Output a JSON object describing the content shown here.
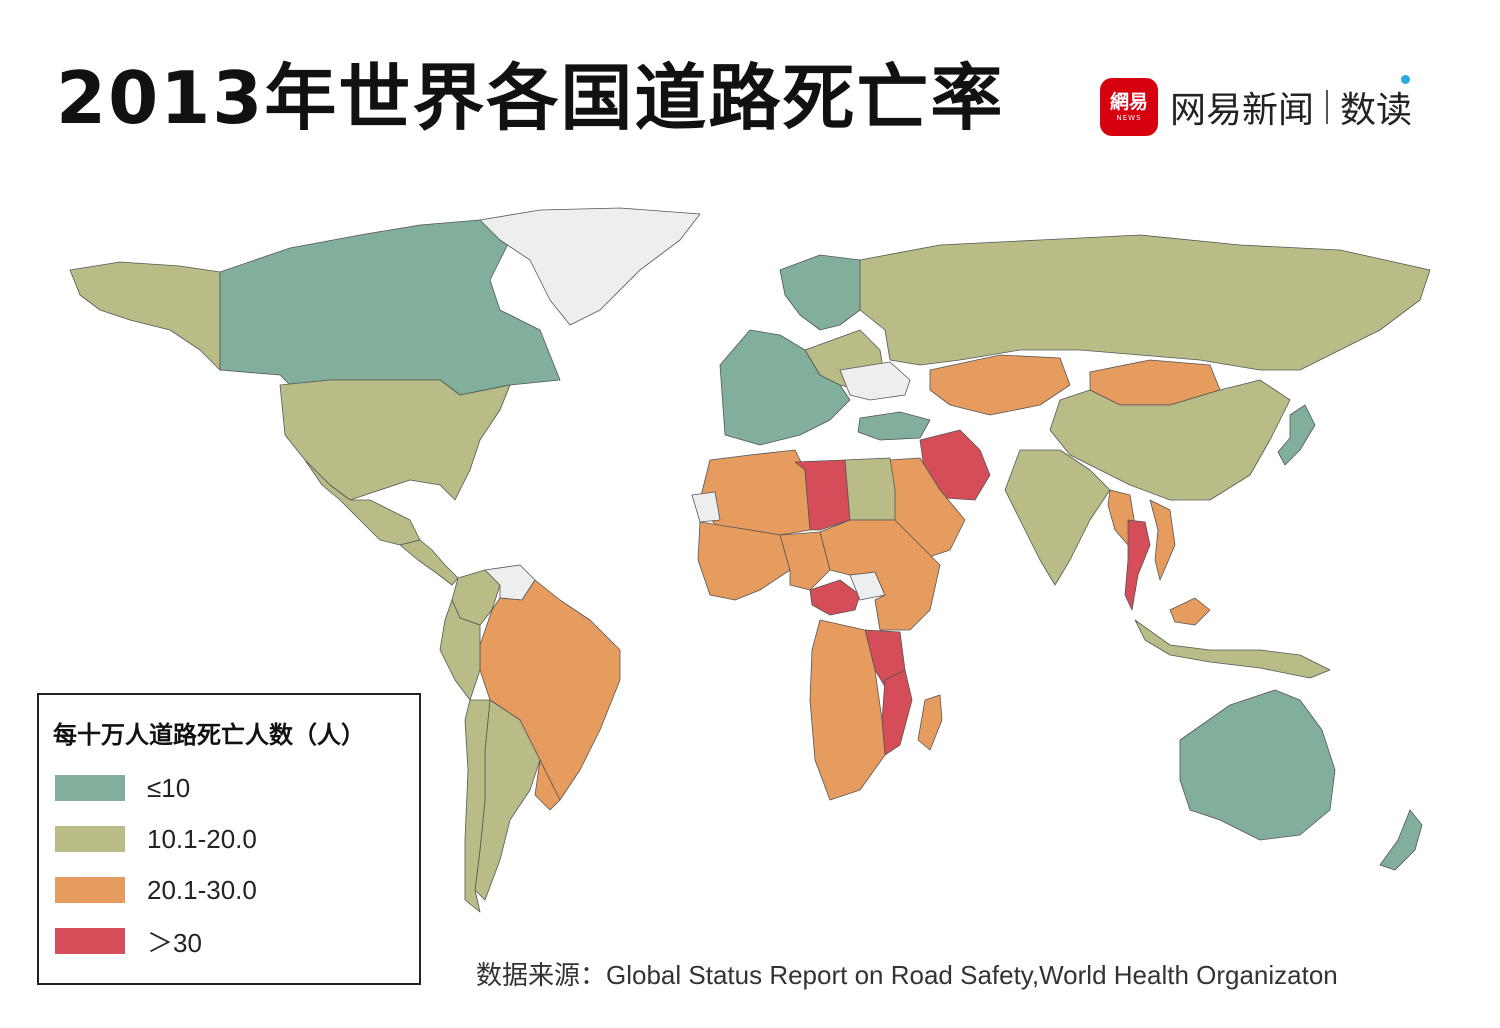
{
  "header": {
    "title": "2013年世界各国道路死亡率",
    "brand_logo_big": "網易",
    "brand_logo_small": "NEWS",
    "brand_name": "网易新闻",
    "brand_sub": "数读"
  },
  "legend": {
    "title": "每十万人道路死亡人数（人）",
    "items": [
      {
        "label": "≤10",
        "color": "#82ae9c"
      },
      {
        "label": "10.1-20.0",
        "color": "#b9bc86"
      },
      {
        "label": "20.1-30.0",
        "color": "#e59c5e"
      },
      {
        "label": "＞30",
        "color": "#d64d5a"
      }
    ]
  },
  "map": {
    "no_data_color": "#eeeeee",
    "border_color": "#555555",
    "regions": [
      {
        "name": "Canada",
        "category": "≤10"
      },
      {
        "name": "Greenland",
        "category": "no data"
      },
      {
        "name": "Alaska",
        "category": "10.1-20.0"
      },
      {
        "name": "United States",
        "category": "10.1-20.0"
      },
      {
        "name": "Mexico",
        "category": "10.1-20.0"
      },
      {
        "name": "Central America",
        "category": "10.1-20.0"
      },
      {
        "name": "Venezuela",
        "category": "no data"
      },
      {
        "name": "Colombia",
        "category": "10.1-20.0"
      },
      {
        "name": "Brazil",
        "category": "20.1-30.0"
      },
      {
        "name": "Peru",
        "category": "10.1-20.0"
      },
      {
        "name": "Argentina",
        "category": "10.1-20.0"
      },
      {
        "name": "Chile",
        "category": "10.1-20.0"
      },
      {
        "name": "Uruguay",
        "category": "20.1-30.0"
      },
      {
        "name": "Western Europe",
        "category": "≤10"
      },
      {
        "name": "Scandinavia",
        "category": "≤10"
      },
      {
        "name": "Eastern Europe",
        "category": "10.1-20.0"
      },
      {
        "name": "Ukraine",
        "category": "no data"
      },
      {
        "name": "Turkey",
        "category": "≤10"
      },
      {
        "name": "Russia",
        "category": "10.1-20.0"
      },
      {
        "name": "Kazakhstan",
        "category": "20.1-30.0"
      },
      {
        "name": "Mongolia",
        "category": "20.1-30.0"
      },
      {
        "name": "China",
        "category": "10.1-20.0"
      },
      {
        "name": "Iran",
        "category": "＞30"
      },
      {
        "name": "Saudi Arabia",
        "category": "20.1-30.0"
      },
      {
        "name": "India",
        "category": "10.1-20.0"
      },
      {
        "name": "Myanmar",
        "category": "20.1-30.0"
      },
      {
        "name": "Thailand",
        "category": "＞30"
      },
      {
        "name": "Vietnam",
        "category": "20.1-30.0"
      },
      {
        "name": "Japan",
        "category": "≤10"
      },
      {
        "name": "Indonesia",
        "category": "10.1-20.0"
      },
      {
        "name": "Malaysia",
        "category": "20.1-30.0"
      },
      {
        "name": "Australia",
        "category": "≤10"
      },
      {
        "name": "New Zealand",
        "category": "≤10"
      },
      {
        "name": "Libya",
        "category": "＞30"
      },
      {
        "name": "Egypt",
        "category": "10.1-20.0"
      },
      {
        "name": "North Africa",
        "category": "20.1-30.0"
      },
      {
        "name": "Western Sahara",
        "category": "no data"
      },
      {
        "name": "West Africa",
        "category": "20.1-30.0"
      },
      {
        "name": "Nigeria",
        "category": "20.1-30.0"
      },
      {
        "name": "Central African Republic",
        "category": "＞30"
      },
      {
        "name": "South Sudan",
        "category": "no data"
      },
      {
        "name": "East Africa",
        "category": "20.1-30.0"
      },
      {
        "name": "Tanzania",
        "category": "＞30"
      },
      {
        "name": "Mozambique",
        "category": "＞30"
      },
      {
        "name": "Southern Africa",
        "category": "20.1-30.0"
      },
      {
        "name": "Madagascar",
        "category": "20.1-30.0"
      }
    ]
  },
  "source": "数据来源：Global Status Report on Road Safety,World Health Organizaton"
}
